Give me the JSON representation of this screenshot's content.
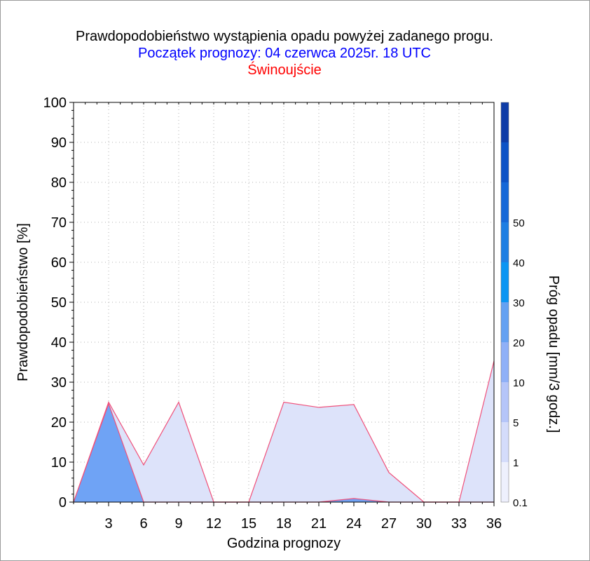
{
  "chart_data": {
    "type": "area",
    "title": "Prawdopodobieństwo wystąpienia opadu powyżej zadanego progu.",
    "subtitle": "Początek prognozy: 04 czerwca 2025r. 18 UTC",
    "location": "Świnoujście",
    "xlabel": "Godzina prognozy",
    "ylabel": "Prawdopodobieństwo [%]",
    "colorbar_label": "Próg opadu [mm/3 godz.]",
    "x": [
      0,
      3,
      6,
      9,
      12,
      15,
      18,
      21,
      24,
      27,
      30,
      33,
      36
    ],
    "x_ticks": [
      "3",
      "6",
      "9",
      "12",
      "15",
      "18",
      "21",
      "24",
      "27",
      "30",
      "33",
      "36"
    ],
    "xlim": [
      0,
      36
    ],
    "y_ticks": [
      "0",
      "10",
      "20",
      "30",
      "40",
      "50",
      "60",
      "70",
      "80",
      "90",
      "100"
    ],
    "ylim": [
      0,
      100
    ],
    "grid": true,
    "series": [
      {
        "name": "0.1",
        "color": "#dde3fa",
        "values": [
          0,
          25,
          9.3,
          25,
          0,
          0,
          25,
          23.7,
          24.4,
          7.4,
          0,
          0,
          35.3
        ]
      },
      {
        "name": "1",
        "color": "#6fa3f5",
        "values": [
          0,
          24.6,
          0,
          0,
          0,
          0,
          0,
          0,
          0.9,
          0,
          0,
          0,
          0
        ]
      }
    ],
    "colorbar": {
      "ticks": [
        "0.1",
        "1",
        "5",
        "10",
        "20",
        "30",
        "40",
        "50"
      ],
      "colors": [
        "#eef0fd",
        "#d4dcfb",
        "#b5c5f9",
        "#8fb0f7",
        "#64a1f2",
        "#0a95f3",
        "#1d7ee3",
        "#1568d8",
        "#0d53c6",
        "#0e3ca7"
      ]
    }
  }
}
